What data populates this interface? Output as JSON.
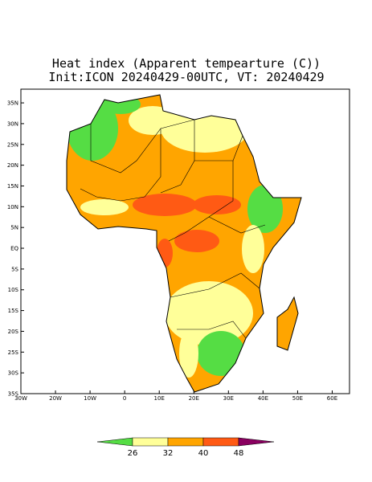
{
  "map": {
    "title": "Heat index (Apparent tempearture (C))",
    "subtitle": "Init:ICON 20240429-00UTC, VT: 20240429",
    "lonlim": [
      -30,
      65
    ],
    "latlim": [
      -35,
      38.3
    ],
    "lon_ticks": [
      {
        "value": -30,
        "label": "30W"
      },
      {
        "value": -20,
        "label": "20W"
      },
      {
        "value": -10,
        "label": "10W"
      },
      0,
      {
        "value": 10,
        "label": "10E"
      },
      {
        "value": 20,
        "label": "20E"
      },
      {
        "value": 30,
        "label": "30E"
      },
      {
        "value": 40,
        "label": "40E"
      },
      {
        "value": 50,
        "label": "50E"
      },
      {
        "value": 60,
        "label": "60E"
      }
    ],
    "lat_ticks": [
      {
        "value": 35,
        "label": "35N"
      },
      {
        "value": 30,
        "label": "30N"
      },
      {
        "value": 25,
        "label": "25N"
      },
      {
        "value": 20,
        "label": "20N"
      },
      {
        "value": 15,
        "label": "15N"
      },
      {
        "value": 10,
        "label": "10N"
      },
      {
        "value": 5,
        "label": "5N"
      },
      {
        "value": 0,
        "label": "EQ"
      },
      {
        "value": -5,
        "label": "5S"
      },
      {
        "value": -10,
        "label": "10S"
      },
      {
        "value": -15,
        "label": "15S"
      },
      {
        "value": -20,
        "label": "20S"
      },
      {
        "value": -25,
        "label": "25S"
      },
      {
        "value": -30,
        "label": "30S"
      },
      {
        "value": -35,
        "label": "35S"
      }
    ],
    "colorbar": {
      "levels": [
        26,
        32,
        40,
        48
      ],
      "colors": [
        "#55dd44",
        "#ffff99",
        "#ffa500",
        "#ff5a14",
        "#8a0060"
      ]
    }
  }
}
